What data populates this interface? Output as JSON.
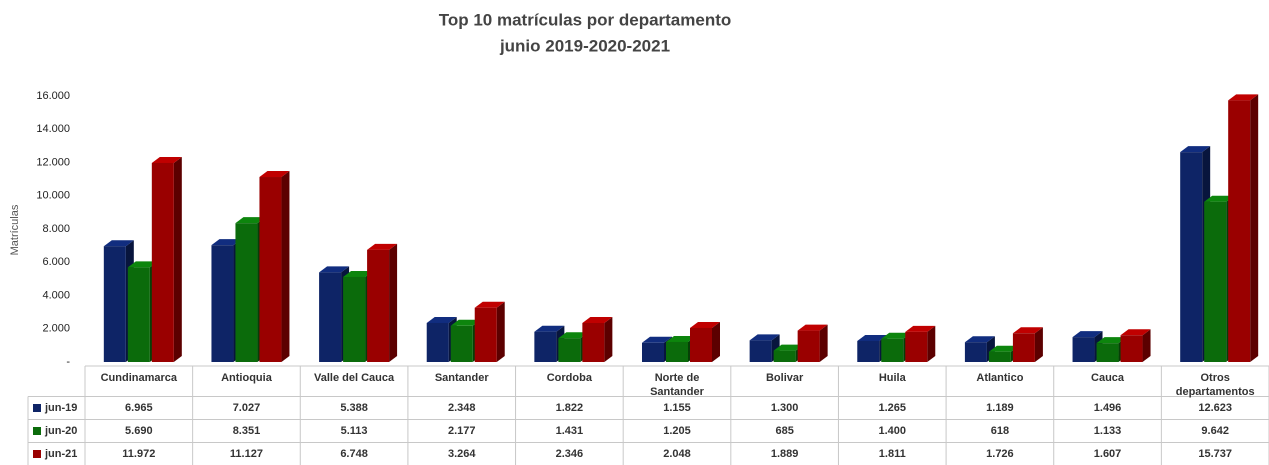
{
  "chart_data": {
    "type": "bar3d",
    "title": "Top 10 matrículas por departamento",
    "subtitle": "junio 2019-2020-2021",
    "y_label": "Matrículas",
    "categories": [
      "Cundinamarca",
      "Antioquia",
      "Valle del Cauca",
      "Santander",
      "Cordoba",
      "Norte de Santander",
      "Bolivar",
      "Huila",
      "Atlantico",
      "Cauca",
      "Otros departamentos"
    ],
    "series": [
      {
        "name": "jun-19",
        "color": "#0e2466",
        "values": [
          6965,
          7027,
          5388,
          2348,
          1822,
          1155,
          1300,
          1265,
          1189,
          1496,
          12623
        ],
        "value_labels": [
          "6.965",
          "7.027",
          "5.388",
          "2.348",
          "1.822",
          "1.155",
          "1.300",
          "1.265",
          "1.189",
          "1.496",
          "12.623"
        ]
      },
      {
        "name": "jun-20",
        "color": "#0b6b0b",
        "values": [
          5690,
          8351,
          5113,
          2177,
          1431,
          1205,
          685,
          1400,
          618,
          1133,
          9642
        ],
        "value_labels": [
          "5.690",
          "8.351",
          "5.113",
          "2.177",
          "1.431",
          "1.205",
          "685",
          "1.400",
          "618",
          "1.133",
          "9.642"
        ]
      },
      {
        "name": "jun-21",
        "color": "#9a0000",
        "values": [
          11972,
          11127,
          6748,
          3264,
          2346,
          2048,
          1889,
          1811,
          1726,
          1607,
          15737
        ],
        "value_labels": [
          "11.972",
          "11.127",
          "6.748",
          "3.264",
          "2.346",
          "2.048",
          "1.889",
          "1.811",
          "1.726",
          "1.607",
          "15.737"
        ]
      }
    ],
    "ylim": [
      0,
      16000
    ],
    "yticks": [
      {
        "value": 0,
        "label": "-"
      },
      {
        "value": 2000,
        "label": "2.000"
      },
      {
        "value": 4000,
        "label": "4.000"
      },
      {
        "value": 6000,
        "label": "6.000"
      },
      {
        "value": 8000,
        "label": "8.000"
      },
      {
        "value": 10000,
        "label": "10.000"
      },
      {
        "value": 12000,
        "label": "12.000"
      },
      {
        "value": 14000,
        "label": "14.000"
      },
      {
        "value": 16000,
        "label": "16.000"
      }
    ]
  }
}
